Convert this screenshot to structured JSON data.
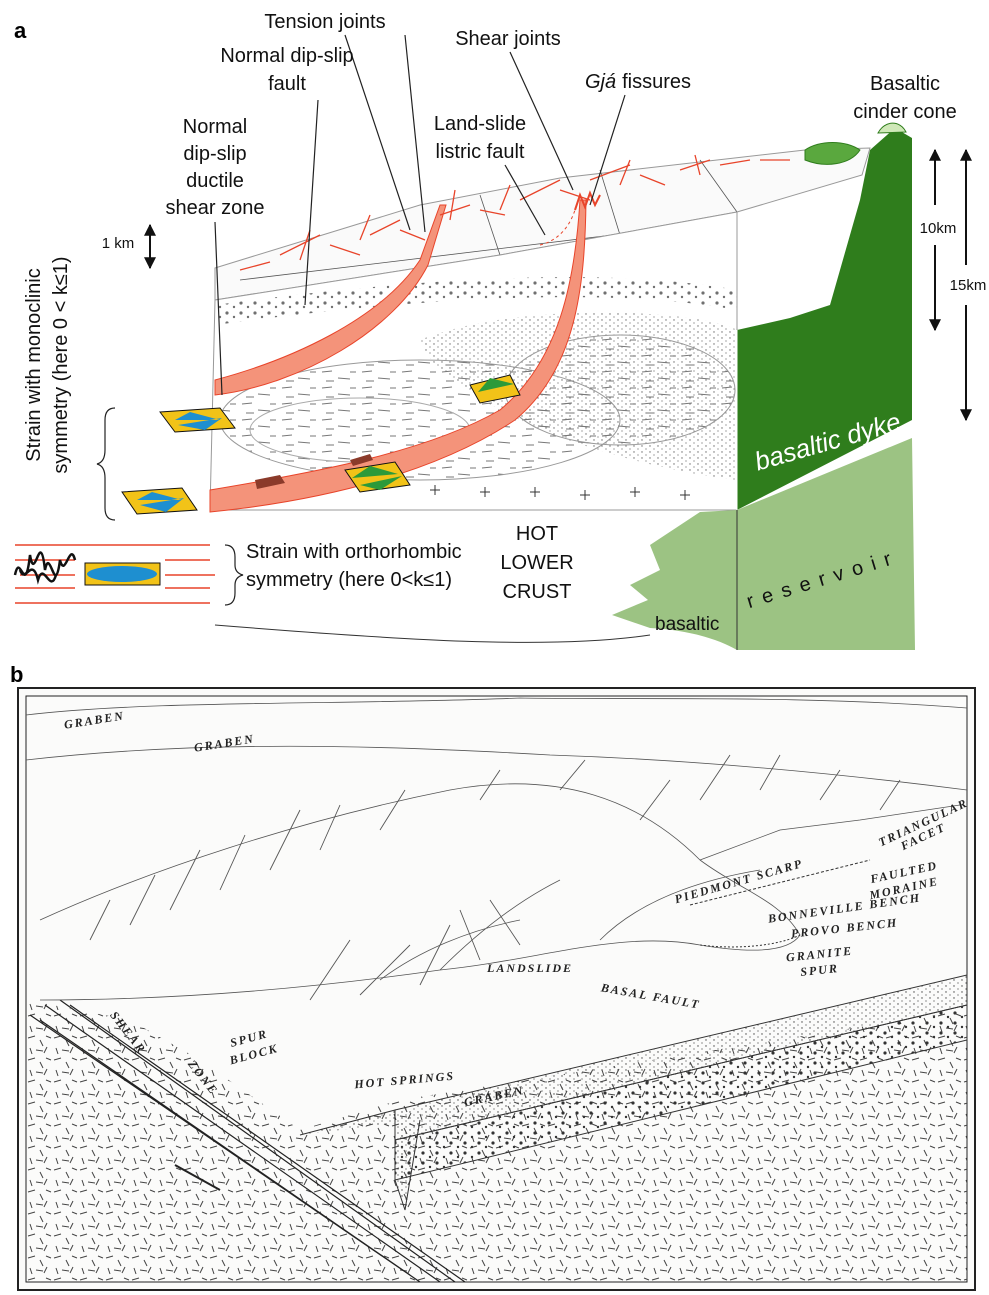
{
  "panel_a": {
    "label": "a",
    "tension_joints": "Tension joints",
    "shear_joints": "Shear joints",
    "normal_fault": [
      "Normal dip-slip",
      "fault"
    ],
    "gja": {
      "italic": "Gjá",
      "rest": "fissures"
    },
    "cinder_cone": [
      "Basaltic",
      "cinder cone"
    ],
    "landslide_fault": [
      "Land-slide",
      "listric fault"
    ],
    "shear_zone": [
      "Normal",
      "dip-slip",
      "ductile",
      "shear zone"
    ],
    "scale_1km": "1 km",
    "scale_10km": "10km",
    "scale_15km": "15km",
    "monoclinic": [
      "Strain with monoclinic",
      "symmetry (here 0 < k≤1)"
    ],
    "dyke": "basaltic dyke",
    "orthorhombic": [
      "Strain with orthorhombic",
      "symmetry (here 0<k≤1)"
    ],
    "crust": [
      "HOT",
      "LOWER",
      "CRUST"
    ],
    "reservoir_a": "basaltic",
    "reservoir_b": "reservoir"
  },
  "panel_b": {
    "label": "b",
    "labels": [
      "GRABEN",
      "GRABEN",
      "TRIANGULAR",
      "FACET",
      "PIEDMONT SCARP",
      "FAULTED",
      "MORAINE",
      "BONNEVILLE BENCH",
      "PROVO BENCH",
      "GRANITE",
      "SPUR",
      "LANDSLIDE",
      "BASAL FAULT",
      "SHEAR",
      "ZONE",
      "SPUR",
      "BLOCK",
      "HOT SPRINGS",
      "GRABEN"
    ]
  }
}
